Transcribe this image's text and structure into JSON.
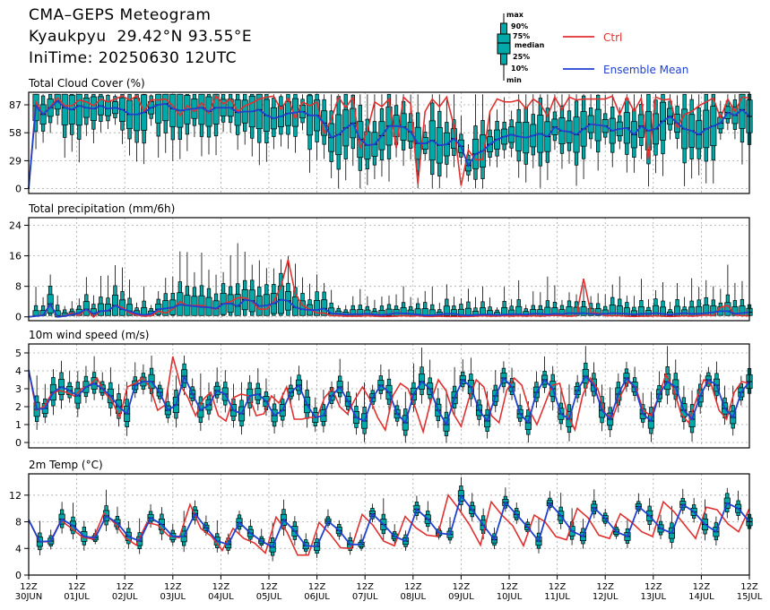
{
  "header": {
    "title": "CMA–GEPS Meteogram",
    "station": "Kyaukpyu",
    "coords": "29.42°N 93.55°E",
    "init_label": "IniTime:",
    "init_time": "20250630 12UTC"
  },
  "legend": {
    "box_labels": [
      "max",
      "90%",
      "75%",
      "median",
      "25%",
      "10%",
      "min"
    ],
    "ctrl_label": "Ctrl",
    "mean_label": "Ensemble Mean",
    "ctrl_color": "#e03030",
    "mean_color": "#2040d0",
    "box_fill": "#00a8a8"
  },
  "x_axis": {
    "start": "2025-06-30 12Z",
    "end": "2025-07-15 12Z",
    "step_hours": 6,
    "tick_labels": [
      [
        "12Z",
        "30JUN"
      ],
      [
        "12Z",
        "01JUL"
      ],
      [
        "12Z",
        "02JUL"
      ],
      [
        "12Z",
        "03JUL"
      ],
      [
        "12Z",
        "04JUL"
      ],
      [
        "12Z",
        "05JUL"
      ],
      [
        "12Z",
        "06JUL"
      ],
      [
        "12Z",
        "07JUL"
      ],
      [
        "12Z",
        "08JUL"
      ],
      [
        "12Z",
        "09JUL"
      ],
      [
        "12Z",
        "10JUL"
      ],
      [
        "12Z",
        "11JUL"
      ],
      [
        "12Z",
        "12JUL"
      ],
      [
        "12Z",
        "13JUL"
      ],
      [
        "12Z",
        "14JUL"
      ],
      [
        "12Z",
        "15JUL"
      ]
    ]
  },
  "chart_data": [
    {
      "type": "box",
      "title": "Total Cloud Cover (%)",
      "ylim": [
        -5,
        100
      ],
      "yticks": [
        0,
        29,
        58,
        87
      ],
      "grid": true,
      "ctrl": [
        0,
        90,
        77,
        85,
        94,
        86,
        86,
        92,
        90,
        86,
        93,
        90,
        93,
        96,
        92,
        96,
        80,
        92,
        92,
        93,
        86,
        76,
        86,
        80,
        89,
        78,
        96,
        88,
        93,
        80,
        86,
        89,
        93,
        95,
        96,
        82,
        94,
        73,
        90,
        86,
        90,
        57,
        72,
        95,
        84,
        95,
        42,
        60,
        90,
        85,
        93,
        42,
        95,
        88,
        5,
        80,
        93,
        85,
        95,
        65,
        3,
        40,
        30,
        30,
        80,
        93,
        90,
        90,
        92,
        83,
        93,
        88,
        75,
        95,
        82,
        95,
        92,
        93,
        93,
        93,
        93,
        96,
        77,
        95,
        80,
        94,
        30,
        95,
        92,
        93,
        63,
        77,
        80,
        86,
        90,
        94,
        73,
        93,
        80,
        95,
        94
      ],
      "mean": [
        0,
        86,
        77,
        84,
        91,
        84,
        82,
        86,
        84,
        83,
        86,
        83,
        84,
        82,
        77,
        77,
        79,
        84,
        87,
        88,
        83,
        81,
        82,
        83,
        84,
        80,
        84,
        84,
        84,
        79,
        80,
        80,
        82,
        76,
        73,
        75,
        78,
        79,
        80,
        76,
        76,
        68,
        53,
        56,
        63,
        68,
        51,
        45,
        46,
        55,
        65,
        65,
        64,
        59,
        47,
        47,
        50,
        45,
        46,
        52,
        44,
        24,
        36,
        39,
        46,
        51,
        54,
        56,
        54,
        53,
        55,
        57,
        54,
        64,
        60,
        59,
        56,
        62,
        67,
        66,
        65,
        60,
        62,
        63,
        56,
        65,
        60,
        62,
        70,
        75,
        68,
        62,
        60,
        56,
        62,
        65,
        68,
        79,
        76,
        82,
        75
      ]
    },
    {
      "type": "box",
      "title": "Total precipitation (mm/6h)",
      "ylim": [
        -1,
        26
      ],
      "yticks": [
        0,
        8,
        16,
        24
      ],
      "grid": true,
      "ctrl": [
        0,
        0.2,
        0.5,
        3.2,
        0,
        0.3,
        1,
        0.4,
        2,
        0,
        1.5,
        1.5,
        3,
        2.5,
        1,
        0.5,
        0.2,
        0.3,
        1.5,
        1,
        2,
        4,
        3,
        3,
        3,
        2.5,
        2,
        3.5,
        4,
        5,
        5,
        4,
        2,
        2,
        4,
        8,
        15,
        6,
        3,
        2,
        1,
        1,
        0.3,
        0.3,
        0.2,
        0.2,
        0.2,
        0.3,
        0.2,
        0.1,
        0.1,
        0.2,
        0.3,
        0.2,
        0.3,
        0.1,
        0.1,
        0.2,
        0.1,
        0.1,
        0.1,
        0.1,
        0.2,
        0.3,
        0.2,
        0.2,
        0.3,
        0.2,
        0.3,
        0.2,
        0.3,
        0.2,
        0.3,
        0.4,
        0.3,
        0.2,
        0.3,
        10,
        1,
        1,
        0.3,
        0.3,
        0.3,
        0.2,
        0.1,
        0.2,
        0.2,
        0.3,
        0.2,
        0.1,
        0.2,
        0.3,
        0.2,
        0.3,
        0.5,
        0.3,
        2.5,
        3,
        0.5,
        0.3,
        0.3
      ],
      "mean": [
        0,
        0.2,
        0.4,
        3.4,
        0,
        0.2,
        0.6,
        1,
        2,
        0.8,
        1.5,
        1.6,
        3,
        2,
        1.5,
        0.8,
        0.5,
        0.8,
        2,
        2.2,
        2.5,
        3.2,
        3,
        2.8,
        2.6,
        2.5,
        2.2,
        3.4,
        3.5,
        2.8,
        4.5,
        4.2,
        2.8,
        3,
        3.5,
        4.5,
        4.2,
        2.5,
        2,
        1.8,
        1.8,
        2.2,
        0.9,
        0.8,
        0.6,
        0.7,
        0.7,
        0.8,
        0.6,
        0.5,
        0.7,
        1,
        0.9,
        0.8,
        0.6,
        0.4,
        0.4,
        0.6,
        0.8,
        0.8,
        0.5,
        0.4,
        0.5,
        0.6,
        0.6,
        0.5,
        0.6,
        0.7,
        0.7,
        0.6,
        0.8,
        0.8,
        0.6,
        0.8,
        0.7,
        1,
        0.9,
        1,
        0.8,
        0.7,
        0.8,
        1,
        0.9,
        0.8,
        0.6,
        0.8,
        0.8,
        1,
        0.8,
        0.6,
        0.8,
        1,
        0.8,
        0.8,
        1,
        1.2,
        1.5,
        1.5,
        0.8,
        1,
        1.2
      ]
    },
    {
      "type": "box",
      "title": "10m wind speed (m/s)",
      "ylim": [
        -0.3,
        5.5
      ],
      "yticks": [
        0,
        1,
        2,
        3,
        4,
        5
      ],
      "grid": true,
      "ctrl": [
        4.05,
        1.8,
        2,
        2.7,
        2.9,
        2.8,
        2.6,
        3,
        3.2,
        3.6,
        2.8,
        2.3,
        1.4,
        3.1,
        3.3,
        3.6,
        3.1,
        1.8,
        2.1,
        4.8,
        3.2,
        2.5,
        1.5,
        2.4,
        2.8,
        1.5,
        1.2,
        2.5,
        2.7,
        2.6,
        1.5,
        1.6,
        2.6,
        2.2,
        3.1,
        1.3,
        1.3,
        1.4,
        1.4,
        2.5,
        3,
        2,
        1.6,
        2.4,
        3.1,
        2.4,
        1.4,
        0.7,
        2.6,
        3.3,
        3,
        1.9,
        0.6,
        2.3,
        3.5,
        2.9,
        1.6,
        0.9,
        2.4,
        3.5,
        3.1,
        1.5,
        1.1,
        2.9,
        3.6,
        3.2,
        1.8,
        1,
        2.1,
        3.2,
        3.3,
        1.6,
        0.7,
        2.6,
        3.6,
        3,
        1.6,
        1.4,
        2.6,
        3.4,
        3.1,
        1.8,
        1.5,
        2.5,
        3.8,
        3,
        1.6,
        1.1,
        2.4,
        3.5,
        3.2,
        1.8,
        1.3,
        2.8,
        3.4,
        3.3
      ],
      "mean": [
        4.05,
        1.85,
        1.9,
        2.8,
        3.1,
        2.9,
        2.6,
        3.1,
        3.3,
        3,
        2.6,
        2,
        1.6,
        3.2,
        3.4,
        3.4,
        2.8,
        1.8,
        2.1,
        3.7,
        2.7,
        1.8,
        2.1,
        2.9,
        2.7,
        1.8,
        1.6,
        2.6,
        2.7,
        2.3,
        1.5,
        1.8,
        2.8,
        3.2,
        2.1,
        1.4,
        1.5,
        2.6,
        3.1,
        2.3,
        1.4,
        1.2,
        2.5,
        3.2,
        2.8,
        1.6,
        1.1,
        2.7,
        3.4,
        3,
        1.8,
        1,
        2.5,
        3.5,
        3.1,
        1.8,
        1.2,
        2.6,
        3.6,
        3.1,
        1.6,
        1.1,
        2.8,
        3.5,
        3,
        1.6,
        1.3,
        2.9,
        3.7,
        3.2,
        1.8,
        1.3,
        2.7,
        3.6,
        3.1,
        1.6,
        1.2,
        2.7,
        3.4,
        3.1,
        1.8,
        1.3,
        2.6,
        3.5,
        3.2,
        1.9,
        1.4,
        2.8,
        3.4
      ]
    },
    {
      "type": "box",
      "title": "2m Temp (°C)",
      "ylim": [
        0,
        15.2
      ],
      "yticks": [
        0,
        4,
        8,
        12
      ],
      "grid": true,
      "ctrl": [
        8.3,
        5,
        5,
        8.2,
        7,
        5.7,
        5.4,
        9.3,
        7.8,
        5.6,
        4.5,
        7.9,
        7.5,
        5.9,
        5.6,
        10.6,
        7,
        5.8,
        3.7,
        7,
        5.5,
        4.8,
        3.3,
        8.7,
        6.5,
        3,
        3,
        7.9,
        6.2,
        4.1,
        4,
        9.1,
        7.5,
        5.1,
        4.4,
        8.8,
        7.1,
        6,
        5.8,
        12,
        9.9,
        7.5,
        4.5,
        11,
        9,
        7.4,
        4.4,
        9,
        8,
        5.8,
        5.3,
        10,
        8.6,
        6,
        5.5,
        9.2,
        8,
        6.5,
        5.8,
        11,
        9.5,
        7.5,
        5.5,
        10.2,
        9.8,
        7.7,
        6.5,
        10
      ],
      "mean": [
        8.3,
        5,
        5.1,
        8.4,
        7.4,
        5.8,
        5.6,
        8.9,
        7.8,
        5.8,
        5.1,
        8.6,
        7.6,
        5.8,
        5.8,
        9.2,
        7.1,
        5.1,
        4.6,
        7.9,
        6.3,
        5.1,
        4.2,
        8.3,
        6.6,
        4.4,
        4.3,
        8.1,
        6.7,
        4.6,
        4.6,
        9.2,
        7.6,
        5.8,
        5.1,
        9.9,
        8.4,
        6.3,
        6.1,
        11.9,
        9.8,
        7.5,
        5.3,
        10.9,
        9.1,
        7.2,
        5.1,
        10.8,
        8.9,
        6.6,
        5.8,
        10.1,
        8.5,
        6.5,
        5.8,
        10.3,
        8.9,
        7,
        6.3,
        10.6,
        9.5,
        7.6,
        6.5,
        10.8,
        10,
        8
      ]
    }
  ]
}
